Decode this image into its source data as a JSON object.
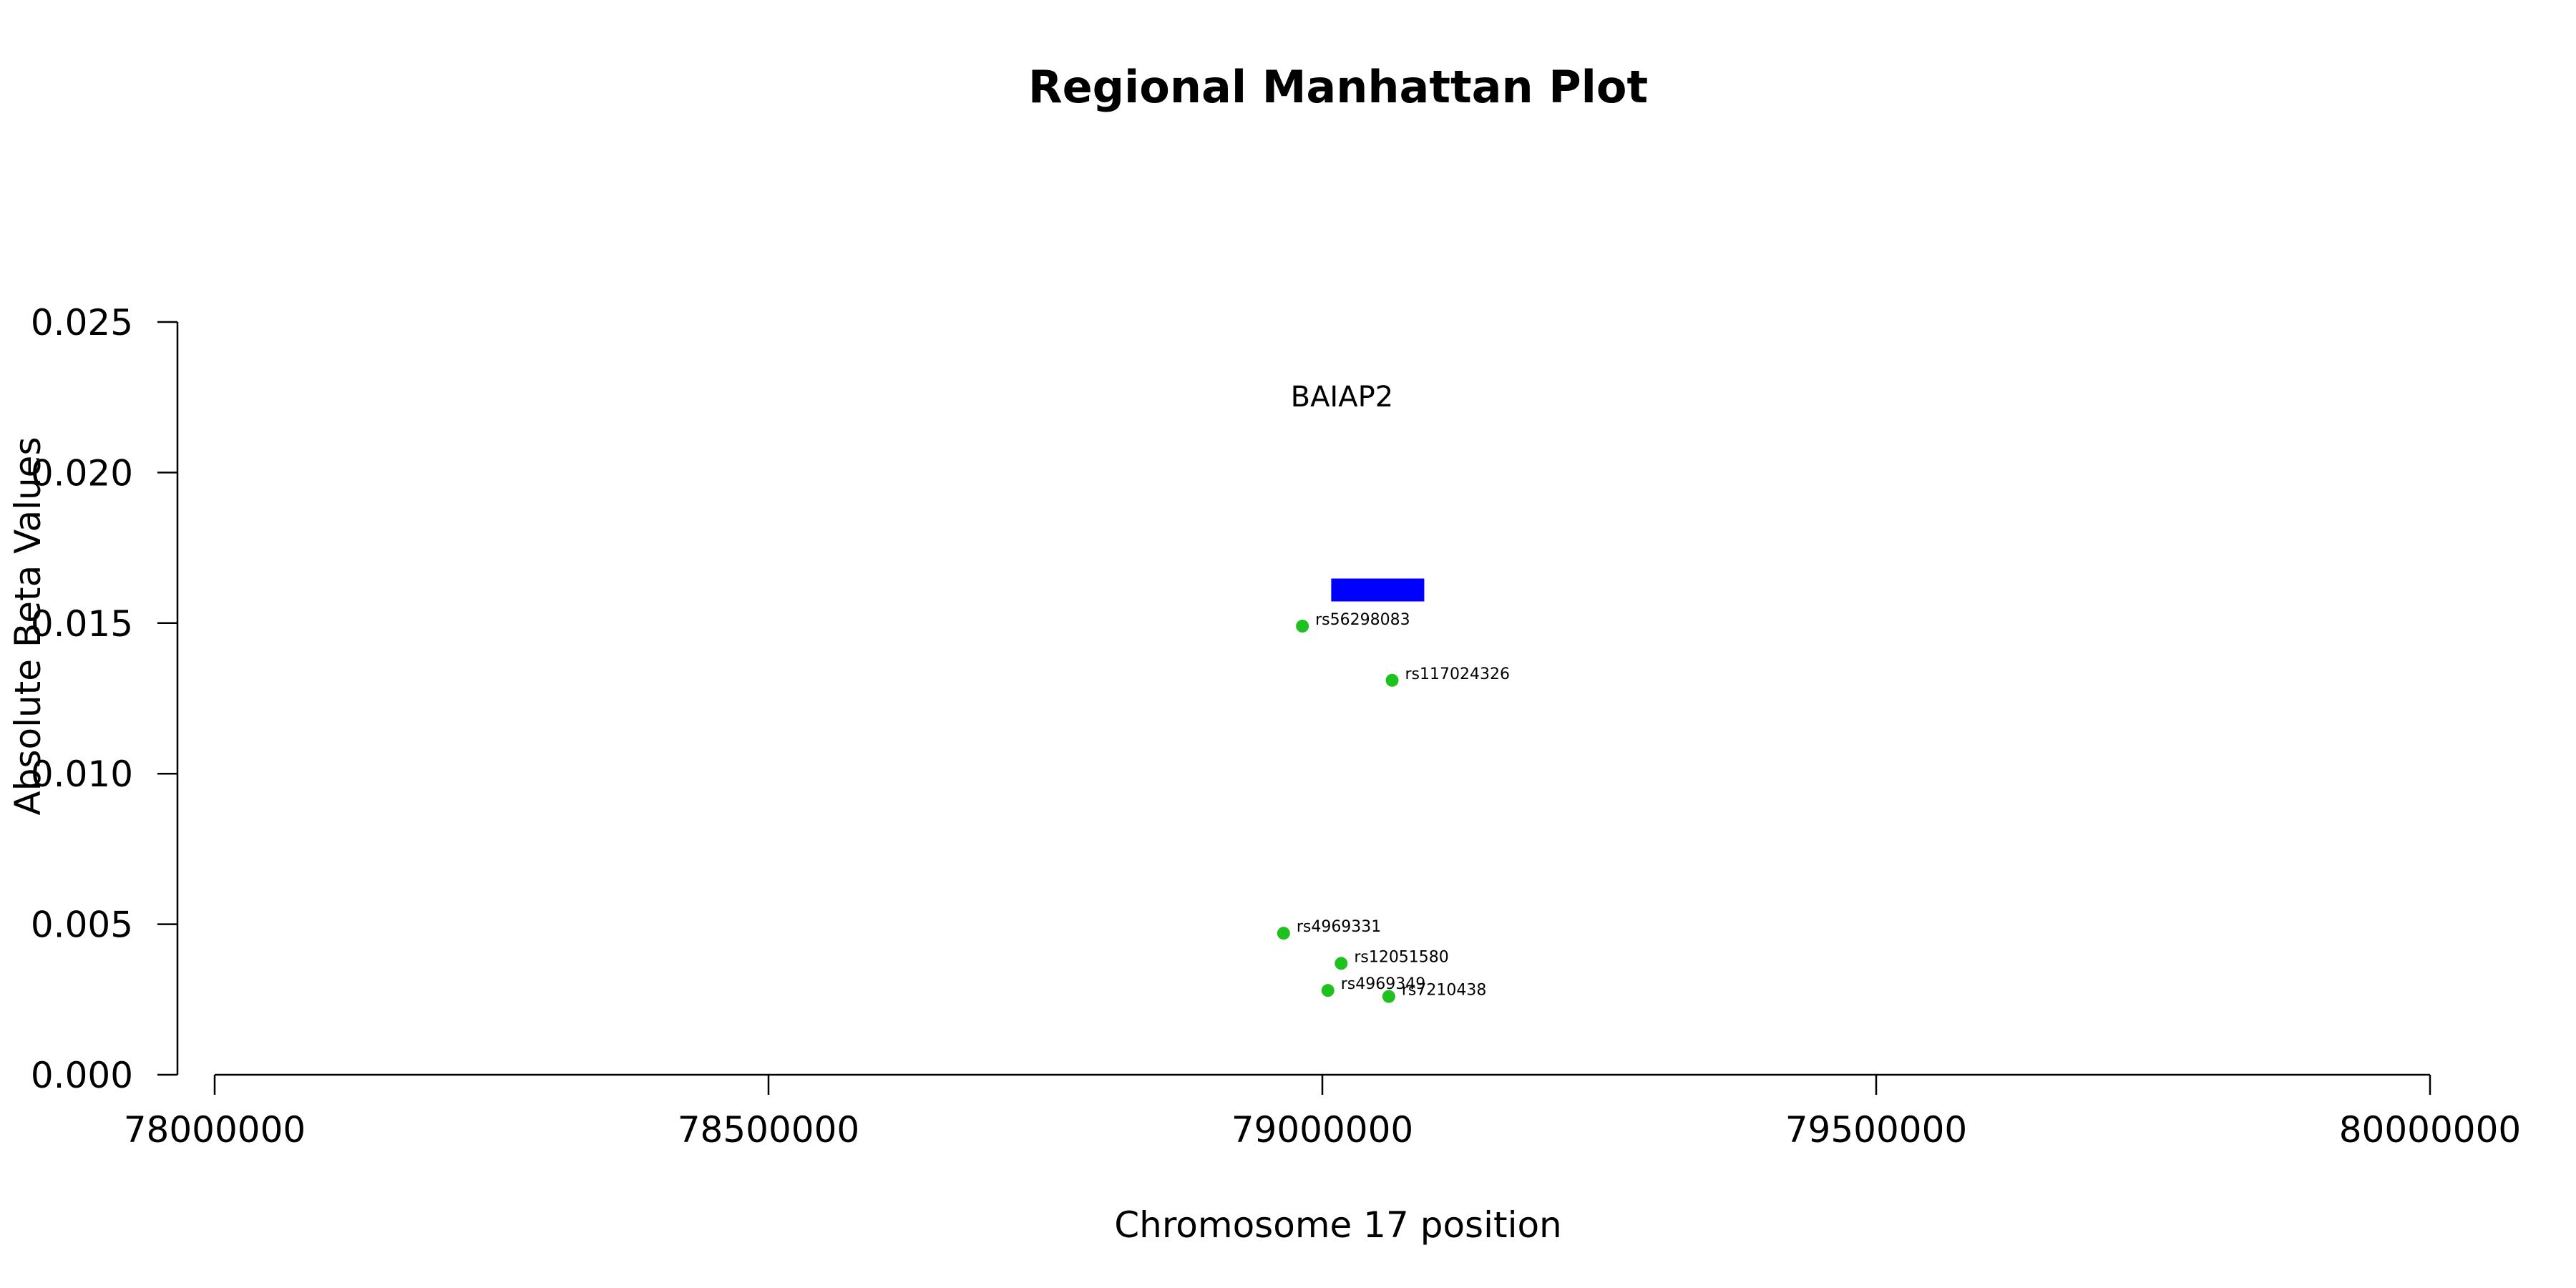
{
  "chart_data": {
    "type": "scatter",
    "title": "Regional Manhattan Plot",
    "xlabel": "Chromosome 17 position",
    "ylabel": "Absolute Beta Values",
    "xlim": [
      78000000,
      80000000
    ],
    "ylim": [
      0,
      0.025
    ],
    "x_ticks": [
      "78000000",
      "78500000",
      "79000000",
      "79500000",
      "80000000"
    ],
    "y_ticks": [
      "0.000",
      "0.005",
      "0.010",
      "0.015",
      "0.020",
      "0.025"
    ],
    "grid": false,
    "point_color": "#1fc11f",
    "gene_color": "#0000ff",
    "genes": [
      {
        "name": "BAIAP2",
        "start": 79008000,
        "end": 79092000,
        "y": 0.0161
      }
    ],
    "points": [
      {
        "label": "rs56298083",
        "x": 78982000,
        "y": 0.0149
      },
      {
        "label": "rs117024326",
        "x": 79063000,
        "y": 0.0131
      },
      {
        "label": "rs4969331",
        "x": 78965000,
        "y": 0.0047
      },
      {
        "label": "rs12051580",
        "x": 79017000,
        "y": 0.0037
      },
      {
        "label": "rs4969349",
        "x": 79005000,
        "y": 0.0028
      },
      {
        "label": "rs7210438",
        "x": 79060000,
        "y": 0.0026
      }
    ]
  }
}
